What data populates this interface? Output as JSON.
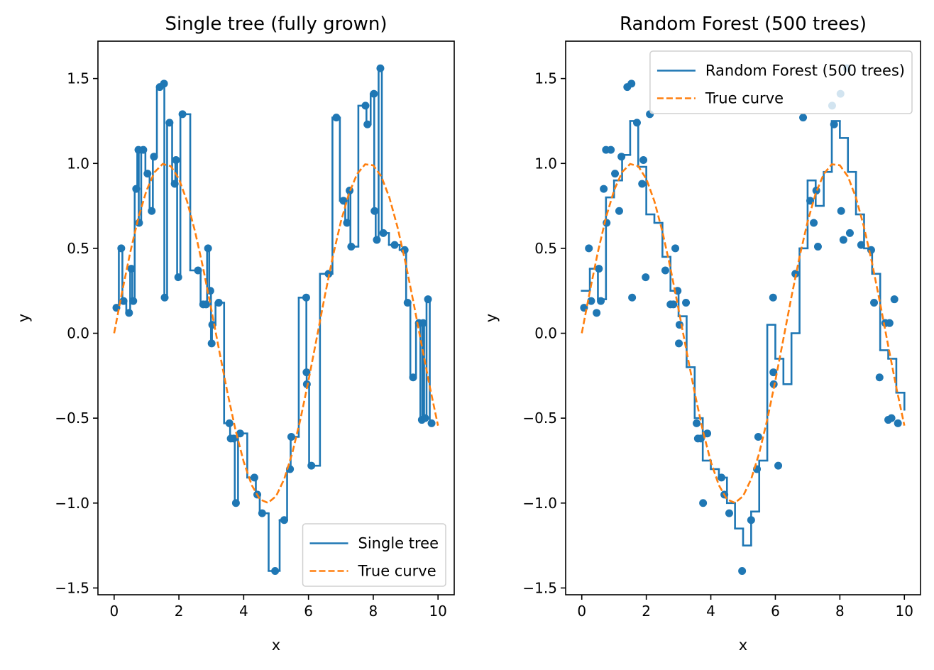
{
  "chart_data": [
    {
      "type": "line",
      "title": "Single tree (fully grown)",
      "xlabel": "x",
      "ylabel": "y",
      "xlim": [
        -0.5,
        10.5
      ],
      "ylim": [
        -1.54,
        1.72
      ],
      "xticks": [
        0,
        2,
        4,
        6,
        8,
        10
      ],
      "yticks": [
        {
          "value": -1.5,
          "label": "−1.5"
        },
        {
          "value": -1,
          "label": "−1.0"
        },
        {
          "value": -0.5,
          "label": "−0.5"
        },
        {
          "value": 0,
          "label": "0.0"
        },
        0.5,
        {
          "value": 1,
          "label": "1.0"
        },
        1.5
      ],
      "legend": "lower right",
      "scatter": {
        "color": "#1f77b4",
        "x": [
          0.07,
          0.22,
          0.29,
          0.46,
          0.53,
          0.59,
          0.68,
          0.75,
          0.77,
          0.9,
          1.03,
          1.16,
          1.23,
          1.41,
          1.54,
          1.56,
          1.71,
          1.87,
          1.91,
          1.98,
          2.11,
          2.59,
          2.75,
          2.84,
          2.9,
          2.97,
          3.01,
          3.03,
          3.23,
          3.56,
          3.6,
          3.69,
          3.76,
          3.89,
          4.33,
          4.42,
          4.57,
          4.97,
          5.25,
          5.43,
          5.47,
          5.93,
          5.94,
          5.95,
          6.09,
          6.62,
          6.86,
          7.08,
          7.19,
          7.27,
          7.32,
          7.76,
          7.82,
          8.02,
          8.04,
          8.11,
          8.22,
          8.31,
          8.66,
          8.97,
          9.06,
          9.23,
          9.41,
          9.5,
          9.54,
          9.6,
          9.69,
          9.8
        ],
        "y": [
          0.15,
          0.5,
          0.19,
          0.12,
          0.38,
          0.19,
          0.85,
          1.08,
          0.65,
          1.08,
          0.94,
          0.72,
          1.04,
          1.45,
          1.47,
          0.21,
          1.24,
          0.88,
          1.02,
          0.33,
          1.29,
          0.37,
          0.17,
          0.17,
          0.5,
          0.25,
          -0.06,
          0.05,
          0.18,
          -0.53,
          -0.62,
          -0.62,
          -1.0,
          -0.59,
          -0.85,
          -0.95,
          -1.06,
          -1.4,
          -1.1,
          -0.8,
          -0.61,
          0.21,
          -0.23,
          -0.3,
          -0.78,
          0.35,
          1.27,
          0.78,
          0.65,
          0.84,
          0.51,
          1.34,
          1.23,
          1.41,
          0.72,
          0.55,
          1.56,
          0.59,
          0.52,
          0.49,
          0.18,
          -0.26,
          0.06,
          -0.51,
          0.06,
          -0.5,
          0.2,
          -0.53
        ]
      },
      "series": [
        {
          "name": "Single tree",
          "color": "#1f77b4",
          "style": "solid",
          "step": "mid",
          "x": [
            0.07,
            0.22,
            0.29,
            0.46,
            0.53,
            0.59,
            0.68,
            0.75,
            0.77,
            0.9,
            1.03,
            1.16,
            1.23,
            1.41,
            1.54,
            1.56,
            1.71,
            1.87,
            1.91,
            1.98,
            2.11,
            2.59,
            2.75,
            2.84,
            2.9,
            2.97,
            3.01,
            3.03,
            3.23,
            3.56,
            3.6,
            3.69,
            3.76,
            3.89,
            4.33,
            4.42,
            4.57,
            4.97,
            5.25,
            5.43,
            5.47,
            5.93,
            5.94,
            5.95,
            6.09,
            6.62,
            6.86,
            7.08,
            7.19,
            7.27,
            7.32,
            7.76,
            7.82,
            8.02,
            8.04,
            8.11,
            8.22,
            8.31,
            8.66,
            8.97,
            9.06,
            9.23,
            9.41,
            9.5,
            9.54,
            9.6,
            9.69,
            9.8
          ],
          "values": [
            0.15,
            0.5,
            0.19,
            0.12,
            0.38,
            0.19,
            0.85,
            1.08,
            0.65,
            1.08,
            0.94,
            0.72,
            1.04,
            1.45,
            1.47,
            0.21,
            1.24,
            0.88,
            1.02,
            0.33,
            1.29,
            0.37,
            0.17,
            0.17,
            0.5,
            0.25,
            -0.06,
            0.05,
            0.18,
            -0.53,
            -0.62,
            -0.62,
            -1.0,
            -0.59,
            -0.85,
            -0.95,
            -1.06,
            -1.4,
            -1.1,
            -0.8,
            -0.61,
            0.21,
            -0.23,
            -0.3,
            -0.78,
            0.35,
            1.27,
            0.78,
            0.65,
            0.84,
            0.51,
            1.34,
            1.23,
            1.41,
            0.72,
            0.55,
            1.56,
            0.59,
            0.52,
            0.49,
            0.18,
            -0.26,
            0.06,
            -0.51,
            0.06,
            -0.5,
            0.2,
            -0.53
          ]
        },
        {
          "name": "True curve",
          "color": "#ff7f0e",
          "style": "dashed",
          "x": [
            0,
            0.25,
            0.5,
            0.75,
            1,
            1.25,
            1.5,
            1.75,
            2,
            2.25,
            2.5,
            2.75,
            3,
            3.25,
            3.5,
            3.75,
            4,
            4.25,
            4.5,
            4.75,
            5,
            5.25,
            5.5,
            5.75,
            6,
            6.25,
            6.5,
            6.75,
            7,
            7.25,
            7.5,
            7.75,
            8,
            8.25,
            8.5,
            8.75,
            9,
            9.25,
            9.5,
            9.75,
            10
          ],
          "values": [
            0,
            0.247,
            0.479,
            0.682,
            0.841,
            0.949,
            0.997,
            0.984,
            0.909,
            0.778,
            0.598,
            0.382,
            0.141,
            -0.108,
            -0.351,
            -0.572,
            -0.757,
            -0.895,
            -0.978,
            -0.999,
            -0.959,
            -0.859,
            -0.706,
            -0.508,
            -0.279,
            -0.033,
            0.215,
            0.45,
            0.657,
            0.823,
            0.938,
            0.995,
            0.989,
            0.923,
            0.798,
            0.624,
            0.412,
            0.174,
            -0.075,
            -0.319,
            -0.544
          ]
        }
      ]
    },
    {
      "type": "line",
      "title": "Random Forest (500 trees)",
      "xlabel": "x",
      "ylabel": "y",
      "xlim": [
        -0.5,
        10.5
      ],
      "ylim": [
        -1.54,
        1.72
      ],
      "xticks": [
        0,
        2,
        4,
        6,
        8,
        10
      ],
      "yticks": [
        {
          "value": -1.5,
          "label": "−1.5"
        },
        {
          "value": -1,
          "label": "−1.0"
        },
        {
          "value": -0.5,
          "label": "−0.5"
        },
        {
          "value": 0,
          "label": "0.0"
        },
        0.5,
        {
          "value": 1,
          "label": "1.0"
        },
        1.5
      ],
      "legend": "upper right",
      "scatter": {
        "color": "#1f77b4",
        "x": [
          0.07,
          0.22,
          0.29,
          0.46,
          0.53,
          0.59,
          0.68,
          0.75,
          0.77,
          0.9,
          1.03,
          1.16,
          1.23,
          1.41,
          1.54,
          1.56,
          1.71,
          1.87,
          1.91,
          1.98,
          2.11,
          2.59,
          2.75,
          2.84,
          2.9,
          2.97,
          3.01,
          3.03,
          3.23,
          3.56,
          3.6,
          3.69,
          3.76,
          3.89,
          4.33,
          4.42,
          4.57,
          4.97,
          5.25,
          5.43,
          5.47,
          5.93,
          5.94,
          5.95,
          6.09,
          6.62,
          6.86,
          7.08,
          7.19,
          7.27,
          7.32,
          7.76,
          7.82,
          8.02,
          8.04,
          8.11,
          8.22,
          8.31,
          8.66,
          8.97,
          9.06,
          9.23,
          9.41,
          9.5,
          9.54,
          9.6,
          9.69,
          9.8
        ],
        "y": [
          0.15,
          0.5,
          0.19,
          0.12,
          0.38,
          0.19,
          0.85,
          1.08,
          0.65,
          1.08,
          0.94,
          0.72,
          1.04,
          1.45,
          1.47,
          0.21,
          1.24,
          0.88,
          1.02,
          0.33,
          1.29,
          0.37,
          0.17,
          0.17,
          0.5,
          0.25,
          -0.06,
          0.05,
          0.18,
          -0.53,
          -0.62,
          -0.62,
          -1.0,
          -0.59,
          -0.85,
          -0.95,
          -1.06,
          -1.4,
          -1.1,
          -0.8,
          -0.61,
          0.21,
          -0.23,
          -0.3,
          -0.78,
          0.35,
          1.27,
          0.78,
          0.65,
          0.84,
          0.51,
          1.34,
          1.23,
          1.41,
          0.72,
          0.55,
          1.56,
          0.59,
          0.52,
          0.49,
          0.18,
          -0.26,
          0.06,
          -0.51,
          0.06,
          -0.5,
          0.2,
          -0.53
        ]
      },
      "series": [
        {
          "name": "Random Forest (500 trees)",
          "color": "#1f77b4",
          "style": "solid",
          "step": "post",
          "x": [
            0,
            0.25,
            0.5,
            0.75,
            1,
            1.25,
            1.5,
            1.75,
            2,
            2.25,
            2.5,
            2.75,
            3,
            3.25,
            3.5,
            3.75,
            4,
            4.25,
            4.5,
            4.75,
            5,
            5.25,
            5.5,
            5.75,
            6,
            6.25,
            6.5,
            6.75,
            7,
            7.25,
            7.5,
            7.75,
            8,
            8.25,
            8.5,
            8.75,
            9,
            9.25,
            9.5,
            9.75,
            10
          ],
          "values": [
            0.25,
            0.38,
            0.2,
            0.8,
            0.9,
            1.05,
            1.25,
            0.98,
            0.7,
            0.65,
            0.45,
            0.25,
            0.1,
            -0.2,
            -0.5,
            -0.75,
            -0.8,
            -0.85,
            -1.0,
            -1.15,
            -1.25,
            -1.05,
            -0.75,
            0.05,
            -0.15,
            -0.3,
            0.0,
            0.5,
            0.9,
            0.75,
            0.95,
            1.25,
            1.15,
            0.95,
            0.7,
            0.5,
            0.35,
            -0.1,
            -0.15,
            -0.35,
            -0.45
          ]
        },
        {
          "name": "True curve",
          "color": "#ff7f0e",
          "style": "dashed",
          "x": [
            0,
            0.25,
            0.5,
            0.75,
            1,
            1.25,
            1.5,
            1.75,
            2,
            2.25,
            2.5,
            2.75,
            3,
            3.25,
            3.5,
            3.75,
            4,
            4.25,
            4.5,
            4.75,
            5,
            5.25,
            5.5,
            5.75,
            6,
            6.25,
            6.5,
            6.75,
            7,
            7.25,
            7.5,
            7.75,
            8,
            8.25,
            8.5,
            8.75,
            9,
            9.25,
            9.5,
            9.75,
            10
          ],
          "values": [
            0,
            0.247,
            0.479,
            0.682,
            0.841,
            0.949,
            0.997,
            0.984,
            0.909,
            0.778,
            0.598,
            0.382,
            0.141,
            -0.108,
            -0.351,
            -0.572,
            -0.757,
            -0.895,
            -0.978,
            -0.999,
            -0.959,
            -0.859,
            -0.706,
            -0.508,
            -0.279,
            -0.033,
            0.215,
            0.45,
            0.657,
            0.823,
            0.938,
            0.995,
            0.989,
            0.923,
            0.798,
            0.624,
            0.412,
            0.174,
            -0.075,
            -0.319,
            -0.544
          ]
        }
      ]
    }
  ]
}
